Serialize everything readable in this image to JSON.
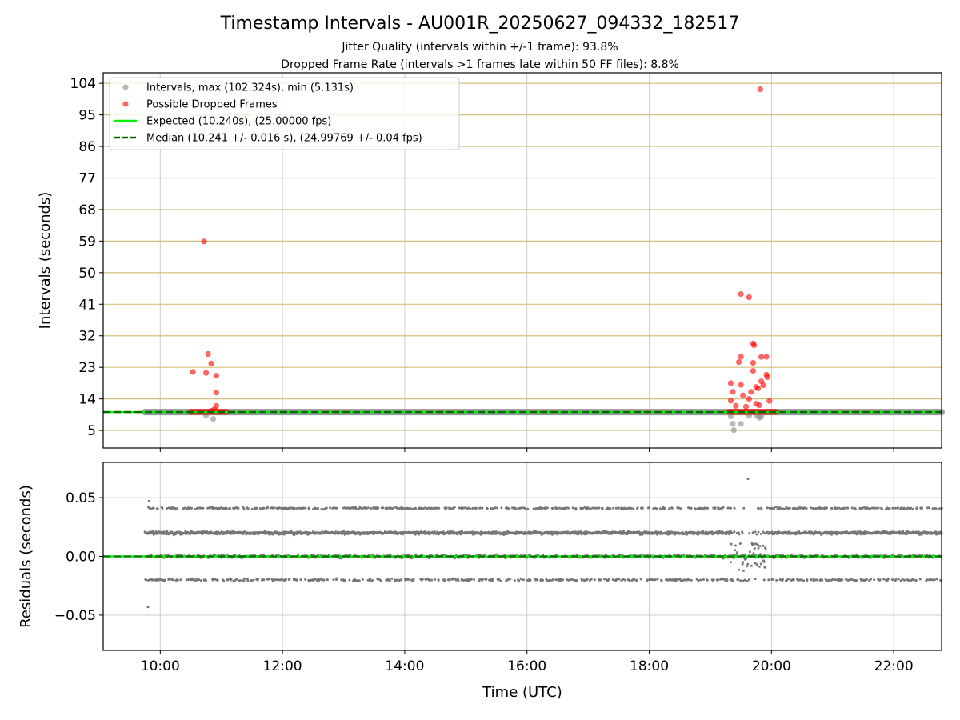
{
  "chart_data": {
    "title": "Timestamp Intervals - AU001R_20250627_094332_182517",
    "subtitle_lines": [
      "Jitter Quality (intervals within +/-1 frame): 93.8%",
      "Dropped Frame Rate (intervals >1 frames late within 50 FF files): 8.8%"
    ],
    "xlabel": "Time (UTC)",
    "x_range": [
      "09:04",
      "22:47"
    ],
    "x_ticks": [
      "10:00",
      "12:00",
      "14:00",
      "16:00",
      "18:00",
      "20:00",
      "22:00"
    ],
    "colors": {
      "intervals": "#888888",
      "dropped": "#ff0000",
      "expected": "#00ee00",
      "median": "#006400",
      "hgrid_top": "#d4bf7a",
      "vgrid": "#cccccc",
      "residuals": "#777777"
    },
    "panels": [
      {
        "type": "scatter",
        "name": "intervals",
        "ylabel": "Intervals (seconds)",
        "ylim": [
          0,
          107
        ],
        "y_ticks": [
          5,
          14,
          23,
          32,
          41,
          50,
          59,
          68,
          77,
          86,
          95,
          104
        ],
        "grid": "horizontal+vertical",
        "legend_position": "upper-left",
        "legend": [
          {
            "label": "Intervals, max (102.324s), min (5.131s)",
            "marker": "dot",
            "color": "#888888"
          },
          {
            "label": "Possible Dropped Frames",
            "marker": "dot",
            "color": "#ff0000"
          },
          {
            "label": "Expected (10.240s), (25.00000 fps)",
            "marker": "solid-line",
            "color": "#00ee00"
          },
          {
            "label": "Median (10.241 +/- 0.016 s), (24.99769 +/- 0.04 fps)",
            "marker": "dashed-line",
            "color": "#006400"
          }
        ],
        "expected_value": 10.24,
        "median_value": 10.241,
        "series": [
          {
            "name": "Intervals",
            "kind": "baseline_band",
            "x_start": "09:45",
            "x_end": "22:47",
            "y": 10.24
          },
          {
            "name": "Intervals",
            "kind": "points",
            "points": [
              [
                "10:45",
                9.3
              ],
              [
                "10:52",
                8.3
              ],
              [
                "19:20",
                9.0
              ],
              [
                "19:22",
                6.9
              ],
              [
                "19:23",
                5.1
              ],
              [
                "19:30",
                6.9
              ],
              [
                "19:45",
                9.4
              ],
              [
                "19:50",
                9.0
              ],
              [
                "19:48",
                8.6
              ],
              [
                "19:38",
                9.2
              ]
            ]
          },
          {
            "name": "Possible Dropped Frames",
            "kind": "points",
            "points": [
              [
                "10:32",
                21.7
              ],
              [
                "10:45",
                21.4
              ],
              [
                "10:47",
                26.8
              ],
              [
                "10:50",
                24.1
              ],
              [
                "10:55",
                20.6
              ],
              [
                "10:55",
                15.8
              ],
              [
                "10:55",
                12.0
              ],
              [
                "10:53",
                11.0
              ],
              [
                "10:43",
                58.9
              ],
              [
                "10:50",
                10.6
              ],
              [
                "19:20",
                18.5
              ],
              [
                "19:22",
                16.0
              ],
              [
                "19:20",
                13.5
              ],
              [
                "19:25",
                12.0
              ],
              [
                "19:28",
                24.5
              ],
              [
                "19:30",
                26.0
              ],
              [
                "19:30",
                18.0
              ],
              [
                "19:32",
                15.0
              ],
              [
                "19:30",
                43.9
              ],
              [
                "19:38",
                43.0
              ],
              [
                "19:42",
                29.8
              ],
              [
                "19:43",
                29.3
              ],
              [
                "19:42",
                24.3
              ],
              [
                "19:42",
                22.0
              ],
              [
                "19:40",
                16.0
              ],
              [
                "19:38",
                14.0
              ],
              [
                "19:45",
                17.4
              ],
              [
                "19:47",
                17.0
              ],
              [
                "19:50",
                19.0
              ],
              [
                "19:52",
                17.9
              ],
              [
                "19:55",
                20.9
              ],
              [
                "19:56",
                20.2
              ],
              [
                "19:55",
                26.0
              ],
              [
                "19:50",
                26.0
              ],
              [
                "19:58",
                13.4
              ],
              [
                "19:48",
                12.2
              ],
              [
                "19:45",
                12.6
              ],
              [
                "19:35",
                11.8
              ],
              [
                "19:49",
                102.3
              ]
            ]
          },
          {
            "name": "Possible Dropped Frames",
            "kind": "band",
            "x_start": "10:30",
            "x_end": "11:05",
            "y": 10.3
          },
          {
            "name": "Possible Dropped Frames",
            "kind": "band",
            "x_start": "19:18",
            "x_end": "20:05",
            "y": 10.3
          }
        ]
      },
      {
        "type": "scatter",
        "name": "residuals",
        "ylabel": "Residuals (seconds)",
        "ylim": [
          -0.08,
          0.08
        ],
        "y_ticks": [
          -0.05,
          0.0,
          0.05
        ],
        "y_tick_labels": [
          "−0.05",
          "0.00",
          "0.05"
        ],
        "grid": "horizontal+vertical",
        "bands": [
          {
            "level": 0.02,
            "spread": 0.0025,
            "density": 1.0
          },
          {
            "level": 0.0,
            "spread": 0.0025,
            "density": 0.7
          },
          {
            "level": -0.02,
            "spread": 0.002,
            "density": 0.35
          },
          {
            "level": 0.041,
            "spread": 0.0015,
            "density": 0.35
          }
        ],
        "gaps": [
          [
            "19:20",
            "19:55"
          ]
        ],
        "outliers": [
          [
            "09:49",
            0.047
          ],
          [
            "09:48",
            -0.043
          ],
          [
            "19:37",
            0.066
          ]
        ],
        "x_start": "09:45",
        "x_end": "22:47"
      }
    ]
  }
}
